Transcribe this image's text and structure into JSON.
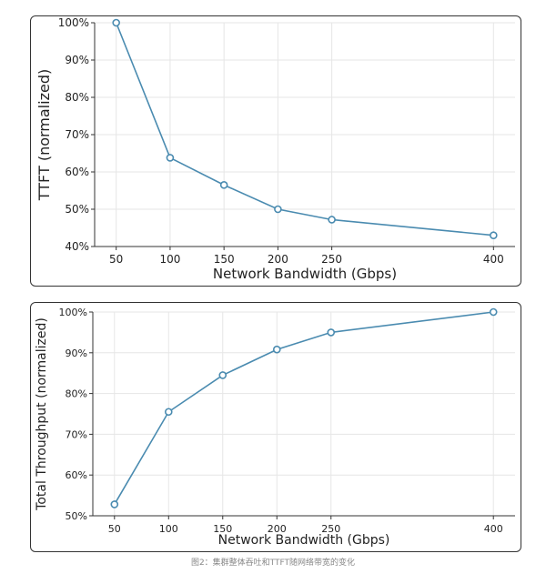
{
  "figure_caption": "图2：集群整体吞吐和TTFT随网络带宽的变化",
  "colors": {
    "line": "#4a8bb0",
    "grid": "#e6e6e6",
    "axis": "#333333"
  },
  "chart_data": [
    {
      "type": "line",
      "xlabel": "Network Bandwidth (Gbps)",
      "ylabel": "TTFT (normalized)",
      "x": [
        50,
        100,
        150,
        200,
        250,
        400
      ],
      "series": [
        {
          "values": [
            100,
            63.8,
            56.5,
            50.0,
            47.2,
            43.0
          ]
        }
      ],
      "x_ticks": [
        50,
        100,
        150,
        200,
        250,
        400
      ],
      "y_ticks": [
        "40%",
        "50%",
        "60%",
        "70%",
        "80%",
        "90%",
        "100%"
      ],
      "ylim": [
        40,
        100
      ],
      "xlim": [
        30,
        420
      ],
      "grid": true,
      "marker": "hollow-circle"
    },
    {
      "type": "line",
      "xlabel": "Network Bandwidth (Gbps)",
      "ylabel": "Total Throughput (normalized)",
      "x": [
        50,
        100,
        150,
        200,
        250,
        400
      ],
      "series": [
        {
          "values": [
            52.8,
            75.5,
            84.5,
            90.8,
            95.0,
            100
          ]
        }
      ],
      "x_ticks": [
        50,
        100,
        150,
        200,
        250,
        400
      ],
      "y_ticks": [
        "50%",
        "60%",
        "70%",
        "80%",
        "90%",
        "100%"
      ],
      "ylim": [
        50,
        100
      ],
      "xlim": [
        30,
        420
      ],
      "grid": true,
      "marker": "hollow-circle"
    }
  ]
}
